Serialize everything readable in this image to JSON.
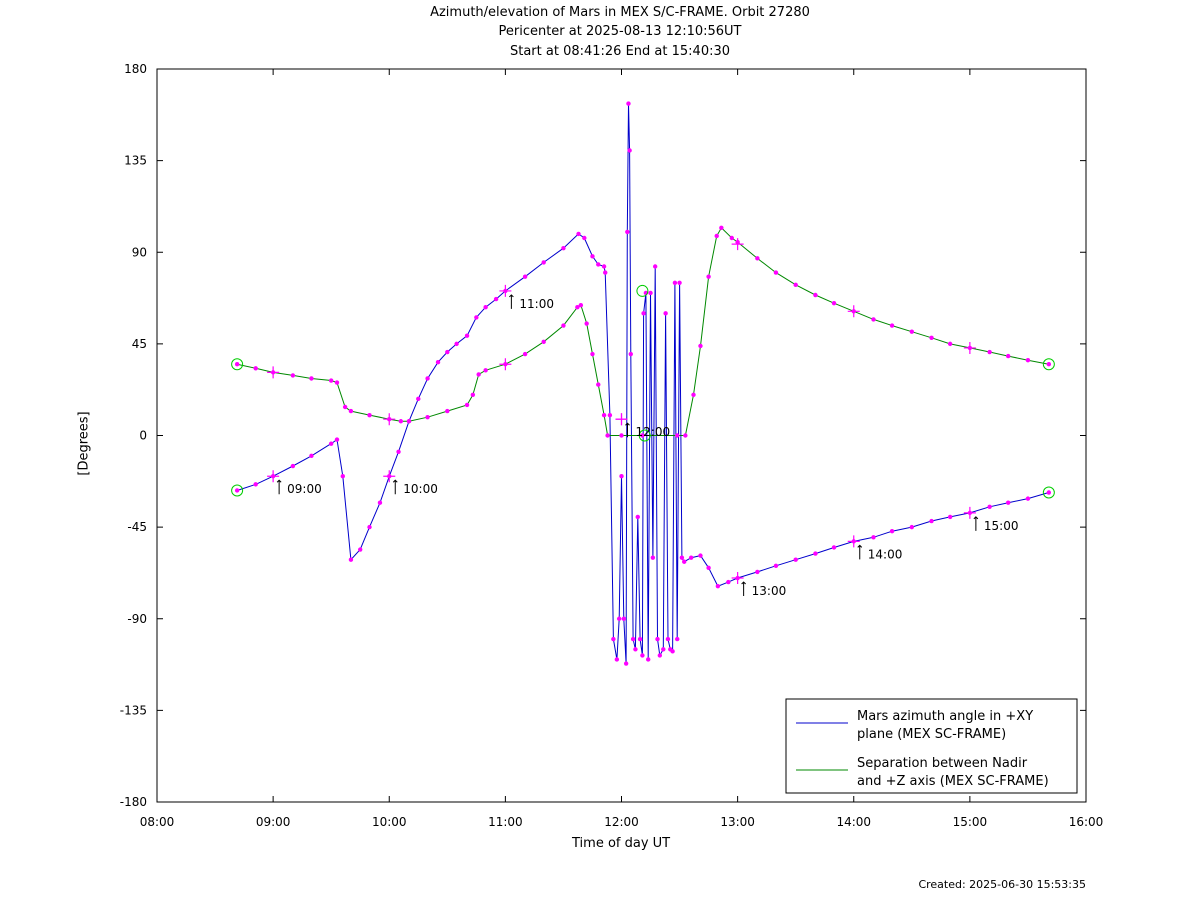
{
  "chart_data": {
    "type": "line",
    "title_lines": [
      "Azimuth/elevation of Mars in MEX S/C-FRAME.  Orbit 27280",
      "Pericenter at 2025-08-13 12:10:56UT",
      "Start at 08:41:26 End at 15:40:30"
    ],
    "xlabel": "Time of day UT",
    "ylabel": "[Degrees]",
    "xlim_hours": [
      8,
      16
    ],
    "ylim": [
      -180,
      180
    ],
    "x_ticks": [
      "08:00",
      "09:00",
      "10:00",
      "11:00",
      "12:00",
      "13:00",
      "14:00",
      "15:00",
      "16:00"
    ],
    "y_ticks": [
      180,
      135,
      90,
      45,
      0,
      -45,
      -90,
      -135,
      -180
    ],
    "grid": false,
    "legend_position": "bottom-right",
    "series": [
      {
        "name": "Mars azimuth angle in +XY plane (MEX SC-FRAME)",
        "legend_lines": [
          "Mars azimuth angle in +XY",
          "plane (MEX SC-FRAME)"
        ],
        "color": "#0000cc",
        "points": [
          [
            8.69,
            -27
          ],
          [
            8.85,
            -24
          ],
          [
            9.0,
            -20
          ],
          [
            9.17,
            -15
          ],
          [
            9.33,
            -10
          ],
          [
            9.5,
            -4
          ],
          [
            9.55,
            -2
          ],
          [
            9.6,
            -20
          ],
          [
            9.67,
            -61
          ],
          [
            9.75,
            -56
          ],
          [
            9.83,
            -45
          ],
          [
            9.92,
            -33
          ],
          [
            10.0,
            -20
          ],
          [
            10.08,
            -8
          ],
          [
            10.17,
            7
          ],
          [
            10.25,
            18
          ],
          [
            10.33,
            28
          ],
          [
            10.42,
            36
          ],
          [
            10.5,
            41
          ],
          [
            10.58,
            45
          ],
          [
            10.67,
            49
          ],
          [
            10.75,
            58
          ],
          [
            10.83,
            63
          ],
          [
            10.92,
            67
          ],
          [
            11.0,
            71
          ],
          [
            11.17,
            78
          ],
          [
            11.33,
            85
          ],
          [
            11.5,
            92
          ],
          [
            11.63,
            99
          ],
          [
            11.68,
            97
          ],
          [
            11.75,
            88
          ],
          [
            11.8,
            84
          ],
          [
            11.85,
            83
          ],
          [
            11.86,
            80
          ],
          [
            11.9,
            10
          ],
          [
            11.93,
            -100
          ],
          [
            11.96,
            -110
          ],
          [
            11.98,
            -90
          ],
          [
            12.0,
            -20
          ],
          [
            12.02,
            -90
          ],
          [
            12.04,
            -112
          ],
          [
            12.05,
            100
          ],
          [
            12.06,
            163
          ],
          [
            12.07,
            140
          ],
          [
            12.08,
            40
          ],
          [
            12.1,
            -100
          ],
          [
            12.12,
            -105
          ],
          [
            12.14,
            -40
          ],
          [
            12.16,
            -100
          ],
          [
            12.18,
            -108
          ],
          [
            12.19,
            60
          ],
          [
            12.21,
            70
          ],
          [
            12.23,
            -110
          ],
          [
            12.25,
            70
          ],
          [
            12.27,
            -60
          ],
          [
            12.29,
            83
          ],
          [
            12.31,
            -100
          ],
          [
            12.33,
            -108
          ],
          [
            12.36,
            -105
          ],
          [
            12.38,
            60
          ],
          [
            12.4,
            -100
          ],
          [
            12.42,
            -105
          ],
          [
            12.44,
            -106
          ],
          [
            12.46,
            75
          ],
          [
            12.48,
            -100
          ],
          [
            12.5,
            75
          ],
          [
            12.52,
            -60
          ],
          [
            12.54,
            -62
          ],
          [
            12.6,
            -60
          ],
          [
            12.68,
            -59
          ],
          [
            12.75,
            -65
          ],
          [
            12.83,
            -74
          ],
          [
            12.92,
            -72
          ],
          [
            13.0,
            -70
          ],
          [
            13.17,
            -67
          ],
          [
            13.33,
            -64
          ],
          [
            13.5,
            -61
          ],
          [
            13.67,
            -58
          ],
          [
            13.83,
            -55
          ],
          [
            14.0,
            -52
          ],
          [
            14.17,
            -50
          ],
          [
            14.33,
            -47
          ],
          [
            14.5,
            -45
          ],
          [
            14.67,
            -42
          ],
          [
            14.83,
            -40
          ],
          [
            15.0,
            -38
          ],
          [
            15.17,
            -35
          ],
          [
            15.33,
            -33
          ],
          [
            15.5,
            -31
          ],
          [
            15.68,
            -28
          ]
        ]
      },
      {
        "name": "Separation between Nadir and +Z axis (MEX SC-FRAME)",
        "legend_lines": [
          "Separation between Nadir",
          "and +Z axis (MEX SC-FRAME)"
        ],
        "color": "#008800",
        "points": [
          [
            8.69,
            35
          ],
          [
            8.85,
            33
          ],
          [
            9.0,
            31
          ],
          [
            9.17,
            29.5
          ],
          [
            9.33,
            28
          ],
          [
            9.5,
            27
          ],
          [
            9.55,
            26
          ],
          [
            9.62,
            14
          ],
          [
            9.67,
            12
          ],
          [
            9.83,
            10
          ],
          [
            10.0,
            8
          ],
          [
            10.1,
            7
          ],
          [
            10.17,
            7
          ],
          [
            10.33,
            9
          ],
          [
            10.5,
            12
          ],
          [
            10.67,
            15
          ],
          [
            10.72,
            20
          ],
          [
            10.77,
            30
          ],
          [
            10.83,
            32
          ],
          [
            11.0,
            35
          ],
          [
            11.17,
            40
          ],
          [
            11.33,
            46
          ],
          [
            11.5,
            54
          ],
          [
            11.62,
            63
          ],
          [
            11.65,
            64
          ],
          [
            11.7,
            55
          ],
          [
            11.75,
            40
          ],
          [
            11.8,
            25
          ],
          [
            11.85,
            10
          ],
          [
            11.88,
            0
          ],
          [
            12.0,
            0
          ],
          [
            12.18,
            0
          ],
          [
            12.48,
            0
          ],
          [
            12.55,
            0
          ],
          [
            12.62,
            20
          ],
          [
            12.68,
            44
          ],
          [
            12.75,
            78
          ],
          [
            12.82,
            98
          ],
          [
            12.86,
            102
          ],
          [
            12.95,
            97
          ],
          [
            13.0,
            95
          ],
          [
            13.17,
            87
          ],
          [
            13.33,
            80
          ],
          [
            13.5,
            74
          ],
          [
            13.67,
            69
          ],
          [
            13.83,
            65
          ],
          [
            14.0,
            61
          ],
          [
            14.17,
            57
          ],
          [
            14.33,
            54
          ],
          [
            14.5,
            51
          ],
          [
            14.67,
            48
          ],
          [
            14.83,
            45
          ],
          [
            15.0,
            43
          ],
          [
            15.17,
            41
          ],
          [
            15.33,
            39
          ],
          [
            15.5,
            37
          ],
          [
            15.68,
            35
          ]
        ]
      }
    ],
    "hour_markers": [
      {
        "label": "09:00",
        "x": 9.0,
        "y": -20
      },
      {
        "label": "10:00",
        "x": 10.0,
        "y": -20
      },
      {
        "label": "11:00",
        "x": 11.0,
        "y": 71
      },
      {
        "label": "12:00",
        "x": 12.0,
        "y": 8
      },
      {
        "label": "13:00",
        "x": 13.0,
        "y": -70
      },
      {
        "label": "14:00",
        "x": 14.0,
        "y": -52
      },
      {
        "label": "15:00",
        "x": 15.0,
        "y": -38
      }
    ],
    "cross_markers": [
      [
        9.0,
        31
      ],
      [
        10.0,
        8
      ],
      [
        11.0,
        35
      ],
      [
        12.0,
        8
      ],
      [
        13.0,
        94
      ],
      [
        14.0,
        61
      ],
      [
        15.0,
        43
      ]
    ],
    "circle_markers": [
      [
        8.69,
        35
      ],
      [
        8.69,
        -27
      ],
      [
        15.68,
        35
      ],
      [
        15.68,
        -28
      ],
      [
        12.18,
        71
      ],
      [
        12.2,
        0
      ]
    ]
  },
  "created": "Created: 2025-06-30 15:53:35"
}
